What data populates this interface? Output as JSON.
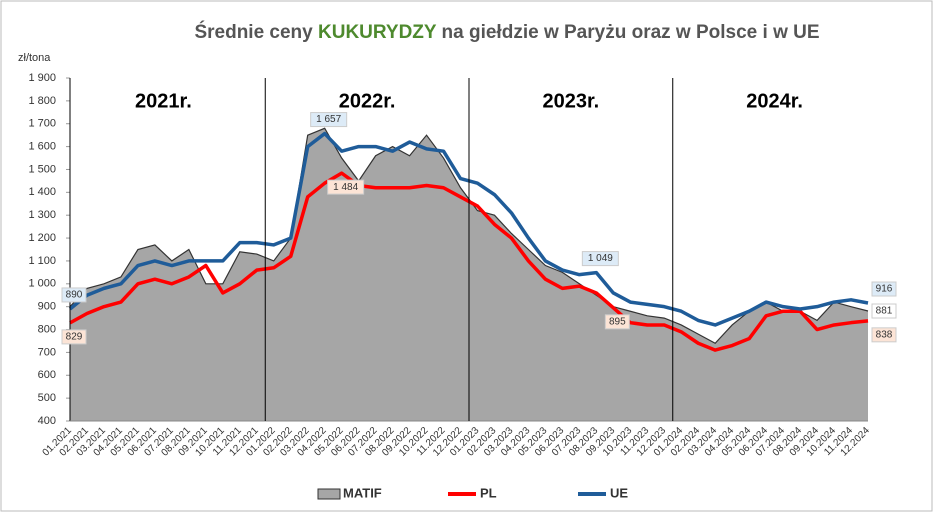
{
  "chart_data": {
    "type": "line",
    "title_prefix": "Średnie ceny ",
    "title_highlight": "KUKURYDZY",
    "title_suffix": " na giełdzie w Paryżu oraz w Polsce i w UE",
    "highlight_color": "#4e8a2e",
    "ylabel": "zł/tona",
    "annotations": [
      "2021r.",
      "2022r.",
      "2023r.",
      "2024r."
    ],
    "categories": [
      "01.2021",
      "02.2021",
      "03.2021",
      "04.2021",
      "05.2021",
      "06.2021",
      "07.2021",
      "08.2021",
      "09.2021",
      "10.2021",
      "11.2021",
      "12.2021",
      "01.2022",
      "02.2022",
      "03.2022",
      "04.2022",
      "05.2022",
      "06.2022",
      "07.2022",
      "08.2022",
      "09.2022",
      "10.2022",
      "11.2022",
      "12.2022",
      "01.2023",
      "02.2023",
      "03.2023",
      "04.2023",
      "05.2023",
      "06.2023",
      "07.2023",
      "08.2023",
      "09.2023",
      "10.2023",
      "11.2023",
      "12.2023",
      "01.2024",
      "02.2024",
      "03.2024",
      "04.2024",
      "05.2024",
      "06.2024",
      "07.2024",
      "08.2024",
      "09.2024",
      "10.2024",
      "11.2024",
      "12.2024"
    ],
    "series": [
      {
        "name": "MATIF",
        "color": "#a6a6a6",
        "kind": "area",
        "values": [
          900,
          980,
          1000,
          1030,
          1150,
          1170,
          1100,
          1150,
          1000,
          1000,
          1140,
          1130,
          1100,
          1200,
          1650,
          1680,
          1550,
          1450,
          1560,
          1600,
          1560,
          1650,
          1550,
          1420,
          1320,
          1300,
          1220,
          1150,
          1080,
          1050,
          1000,
          950,
          900,
          880,
          860,
          850,
          820,
          780,
          740,
          820,
          880,
          920,
          880,
          880,
          840,
          920,
          900,
          881
        ],
        "value_labels": [
          null,
          null,
          null,
          null,
          null,
          null,
          null,
          null,
          null,
          null,
          null,
          null,
          null,
          null,
          null,
          null,
          null,
          null,
          null,
          null,
          null,
          null,
          null,
          null,
          null,
          null,
          null,
          null,
          null,
          null,
          null,
          null,
          null,
          null,
          null,
          null,
          null,
          null,
          null,
          null,
          null,
          null,
          null,
          null,
          null,
          null,
          null,
          "881"
        ]
      },
      {
        "name": "PL",
        "color": "#ff0000",
        "kind": "line",
        "values": [
          829,
          870,
          900,
          920,
          1000,
          1020,
          1000,
          1030,
          1080,
          960,
          1000,
          1060,
          1070,
          1120,
          1380,
          1440,
          1484,
          1430,
          1420,
          1420,
          1420,
          1430,
          1420,
          1380,
          1340,
          1260,
          1200,
          1100,
          1020,
          980,
          990,
          960,
          895,
          830,
          820,
          820,
          790,
          740,
          710,
          730,
          760,
          860,
          880,
          880,
          800,
          820,
          830,
          838
        ],
        "value_labels": [
          "829",
          null,
          null,
          null,
          null,
          null,
          null,
          null,
          null,
          null,
          null,
          null,
          null,
          null,
          null,
          null,
          "1 484",
          null,
          null,
          null,
          null,
          null,
          null,
          null,
          null,
          null,
          null,
          null,
          null,
          null,
          null,
          null,
          "895",
          null,
          null,
          null,
          null,
          null,
          null,
          null,
          null,
          null,
          null,
          null,
          null,
          null,
          null,
          "838"
        ]
      },
      {
        "name": "UE",
        "color": "#1f5c99",
        "kind": "line",
        "values": [
          890,
          950,
          980,
          1000,
          1080,
          1100,
          1080,
          1100,
          1100,
          1100,
          1180,
          1180,
          1170,
          1200,
          1600,
          1657,
          1580,
          1600,
          1600,
          1580,
          1620,
          1590,
          1580,
          1460,
          1440,
          1390,
          1310,
          1200,
          1100,
          1060,
          1040,
          1049,
          960,
          920,
          910,
          900,
          880,
          840,
          820,
          850,
          880,
          920,
          900,
          890,
          900,
          920,
          930,
          916
        ],
        "value_labels": [
          "890",
          null,
          null,
          null,
          null,
          null,
          null,
          null,
          null,
          null,
          null,
          null,
          null,
          null,
          null,
          "1 657",
          null,
          null,
          null,
          null,
          null,
          null,
          null,
          null,
          null,
          null,
          null,
          null,
          null,
          null,
          null,
          "1 049",
          null,
          null,
          null,
          null,
          null,
          null,
          null,
          null,
          null,
          null,
          null,
          null,
          null,
          null,
          null,
          "916"
        ]
      }
    ],
    "ylim": [
      400,
      1900
    ],
    "yticks": [
      400,
      500,
      600,
      700,
      800,
      900,
      {
        "value": 1000,
        "label": "1 000"
      },
      {
        "value": 1100,
        "label": "1 100"
      },
      {
        "value": 1200,
        "label": "1 200"
      },
      {
        "value": 1300,
        "label": "1 300"
      },
      {
        "value": 1400,
        "label": "1 400"
      },
      {
        "value": 1500,
        "label": "1 500"
      },
      {
        "value": 1600,
        "label": "1 600"
      },
      {
        "value": 1700,
        "label": "1 700"
      },
      {
        "value": 1800,
        "label": "1 800"
      },
      {
        "value": 1900,
        "label": "1 900"
      }
    ],
    "legend": "bottom"
  }
}
